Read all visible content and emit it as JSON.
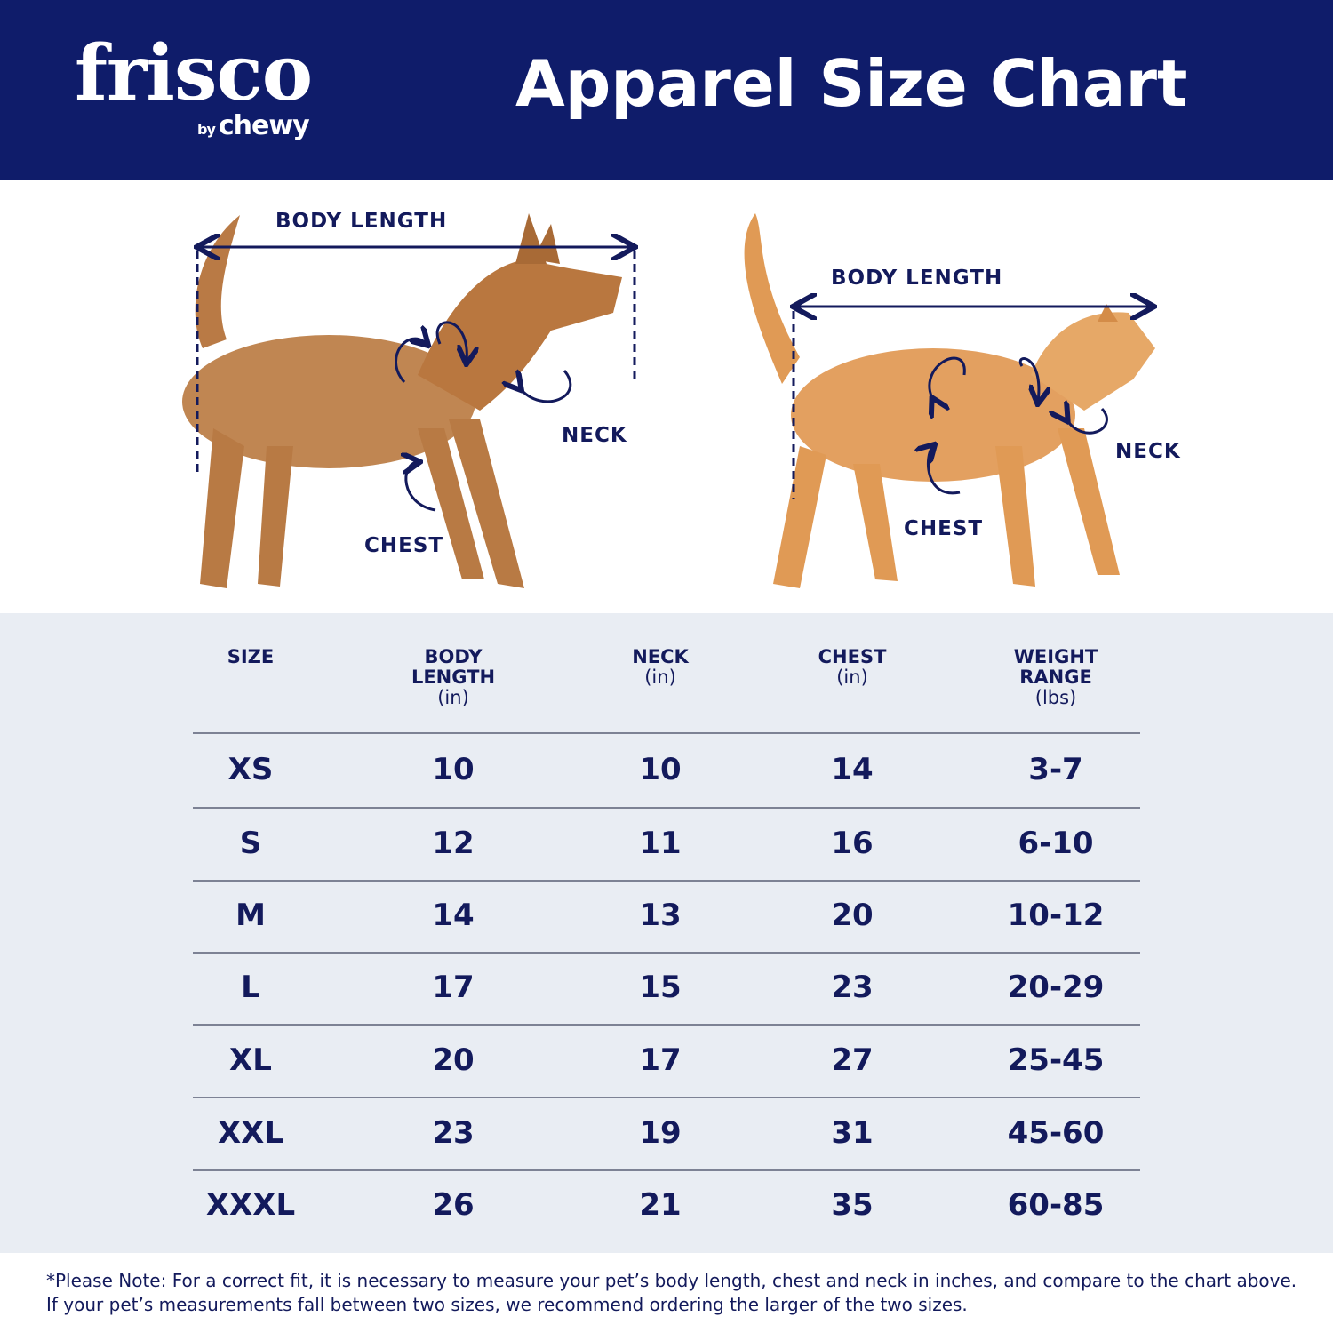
{
  "header": {
    "brand": "frisco",
    "brand_sub_by": "by",
    "brand_sub": "chewy",
    "title": "Apparel Size Chart",
    "bg_color": "#0f1c6a"
  },
  "illustration": {
    "dog": {
      "body_length": "BODY LENGTH",
      "neck": "NECK",
      "chest": "CHEST"
    },
    "cat": {
      "body_length": "BODY LENGTH",
      "neck": "NECK",
      "chest": "CHEST"
    }
  },
  "table": {
    "headers": [
      {
        "title": "SIZE",
        "unit": ""
      },
      {
        "title": "BODY LENGTH",
        "unit": "(in)"
      },
      {
        "title": "NECK",
        "unit": "(in)"
      },
      {
        "title": "CHEST",
        "unit": "(in)"
      },
      {
        "title": "WEIGHT RANGE",
        "unit": "(lbs)"
      }
    ],
    "rows": [
      [
        "XS",
        "10",
        "10",
        "14",
        "3-7"
      ],
      [
        "S",
        "12",
        "11",
        "16",
        "6-10"
      ],
      [
        "M",
        "14",
        "13",
        "20",
        "10-12"
      ],
      [
        "L",
        "17",
        "15",
        "23",
        "20-29"
      ],
      [
        "XL",
        "20",
        "17",
        "27",
        "25-45"
      ],
      [
        "XXL",
        "23",
        "19",
        "31",
        "45-60"
      ],
      [
        "XXXL",
        "26",
        "21",
        "35",
        "60-85"
      ]
    ]
  },
  "footer": {
    "note": "*Please Note: For a correct fit, it is necessary to measure your pet’s body length, chest and neck in inches, and compare to the chart above. If your pet’s measurements fall between two sizes, we recommend ordering the larger of the two sizes."
  }
}
